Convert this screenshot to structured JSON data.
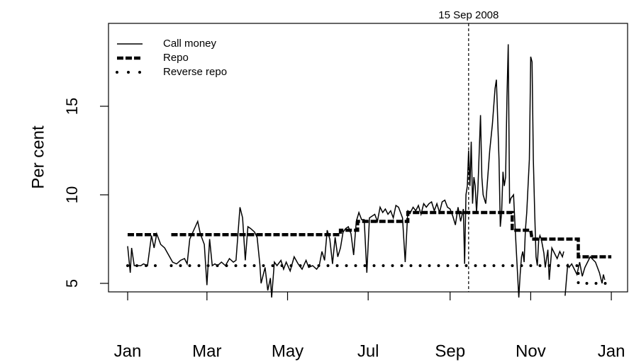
{
  "chart_data": {
    "type": "line",
    "y_label": "Per cent",
    "annotation": {
      "x": 258,
      "label": "15 Sep 2008"
    },
    "xlim": [
      -14.5,
      378.3
    ],
    "ylim": [
      4.52,
      19.68
    ],
    "xticks": [
      {
        "value": 0,
        "label": "Jan"
      },
      {
        "value": 60,
        "label": "Mar"
      },
      {
        "value": 121,
        "label": "May"
      },
      {
        "value": 182,
        "label": "Jul"
      },
      {
        "value": 244,
        "label": "Sep"
      },
      {
        "value": 305,
        "label": "Nov"
      },
      {
        "value": 366,
        "label": "Jan"
      }
    ],
    "yticks": [
      5,
      10,
      15
    ],
    "legend": "top-left",
    "series": [
      {
        "name": "Call money",
        "color": "#000000",
        "linestyle": "solid",
        "x": [
          0,
          2,
          3,
          5,
          7,
          10,
          12,
          15,
          18,
          20,
          22,
          25,
          28,
          31,
          34,
          37,
          40,
          43,
          45,
          47,
          50,
          53,
          55,
          58,
          60,
          62,
          64,
          66,
          68,
          71,
          74,
          77,
          80,
          82,
          85,
          87,
          89,
          91,
          93,
          96,
          98,
          100,
          101,
          104,
          106,
          108,
          109,
          111,
          113,
          116,
          118,
          120,
          123,
          126,
          129,
          132,
          135,
          137,
          140,
          143,
          145,
          147,
          149,
          151,
          153,
          155,
          157,
          159,
          161,
          163,
          165,
          167,
          169,
          171,
          173,
          175,
          177,
          179,
          181,
          183,
          185,
          187,
          189,
          191,
          193,
          195,
          197,
          199,
          201,
          203,
          205,
          208,
          210,
          212,
          214,
          216,
          218,
          220,
          222,
          224,
          226,
          228,
          230,
          232,
          234,
          236,
          238,
          240,
          242,
          244,
          246,
          248,
          250,
          252,
          254,
          255,
          256,
          257,
          258,
          259,
          260,
          261,
          262,
          263,
          264,
          265,
          267,
          268,
          269,
          271,
          272,
          274,
          276,
          278,
          279,
          281,
          282,
          283,
          284,
          285,
          286,
          287,
          288,
          289,
          290,
          292,
          293,
          294,
          296,
          297,
          298,
          299,
          300,
          301,
          302,
          304,
          305,
          306,
          307,
          308,
          309,
          310,
          311,
          312,
          313,
          315,
          316,
          318,
          319,
          321,
          323,
          325,
          327,
          329,
          330,
          330.5,
          331,
          333,
          334,
          336,
          338,
          340,
          342,
          344,
          346,
          350,
          354,
          357,
          359,
          360,
          361
        ],
        "values": [
          7.1,
          5.6,
          7.0,
          6.0,
          6.0,
          6.0,
          6.1,
          6.0,
          7.7,
          7.0,
          7.8,
          7.2,
          7.0,
          6.6,
          6.2,
          6.1,
          6.3,
          6.4,
          6.1,
          7.5,
          8.0,
          8.5,
          7.8,
          7.2,
          4.9,
          7.5,
          6.0,
          6.1,
          6.0,
          6.2,
          6.0,
          6.4,
          6.2,
          6.3,
          9.3,
          8.7,
          6.3,
          8.2,
          8.1,
          7.9,
          7.6,
          6.1,
          5.0,
          5.9,
          4.6,
          5.3,
          4.2,
          6.2,
          6.0,
          6.3,
          5.8,
          6.2,
          5.7,
          6.5,
          6.1,
          5.8,
          6.3,
          5.9,
          6.0,
          5.8,
          6.0,
          6.8,
          6.3,
          8.0,
          7.5,
          6.1,
          7.6,
          6.5,
          7.0,
          7.9,
          8.1,
          8.2,
          7.8,
          6.6,
          8.5,
          9.0,
          8.6,
          8.6,
          5.6,
          8.7,
          8.8,
          8.9,
          8.5,
          9.3,
          9.0,
          9.2,
          8.9,
          9.1,
          8.7,
          9.4,
          9.3,
          8.7,
          6.2,
          9.1,
          9.0,
          9.3,
          9.1,
          9.4,
          8.9,
          9.5,
          9.3,
          9.5,
          9.6,
          9.1,
          9.5,
          9.0,
          9.6,
          9.7,
          9.3,
          9.2,
          8.8,
          8.3,
          9.3,
          8.5,
          9.2,
          6.1,
          10.0,
          10.5,
          12.5,
          10.5,
          13.0,
          9.5,
          11.0,
          10.5,
          9.0,
          10.3,
          14.5,
          11.0,
          10.0,
          9.5,
          10.5,
          12.5,
          14.0,
          16.0,
          16.5,
          12.0,
          8.2,
          9.0,
          11.3,
          10.5,
          11.0,
          15.5,
          18.5,
          9.5,
          9.8,
          10.0,
          8.5,
          7.0,
          4.2,
          5.5,
          6.5,
          6.8,
          6.2,
          8.0,
          9.0,
          12.0,
          17.8,
          17.5,
          12.0,
          9.0,
          6.5,
          6.0,
          7.4,
          7.7,
          7.5,
          6.7,
          5.9,
          6.9,
          5.2,
          7.0,
          6.7,
          6.4,
          6.8,
          6.5,
          6.8,
          null,
          4.3,
          6.1,
          5.9,
          6.1,
          5.8,
          5.5,
          6.2,
          5.4,
          5.9,
          6.5,
          6.2,
          5.6,
          5.0,
          5.5,
          5.2
        ]
      },
      {
        "name": "Repo",
        "color": "#000000",
        "linestyle": "dashed",
        "x": [
          0,
          22,
          27,
          33,
          161,
          161,
          174,
          174,
          212,
          212,
          291,
          291,
          305,
          306,
          341,
          341,
          366
        ],
        "values": [
          7.75,
          7.75,
          null,
          7.75,
          7.75,
          8.0,
          8.0,
          8.5,
          8.5,
          9.0,
          9.0,
          8.0,
          8.0,
          7.5,
          7.5,
          6.5,
          6.5
        ]
      },
      {
        "name": "Reverse repo",
        "color": "#000000",
        "linestyle": "dotted",
        "x": [
          0,
          22,
          27,
          33,
          341,
          341,
          366
        ],
        "values": [
          6.0,
          6.0,
          null,
          6.0,
          6.0,
          5.0,
          5.0
        ]
      }
    ]
  }
}
